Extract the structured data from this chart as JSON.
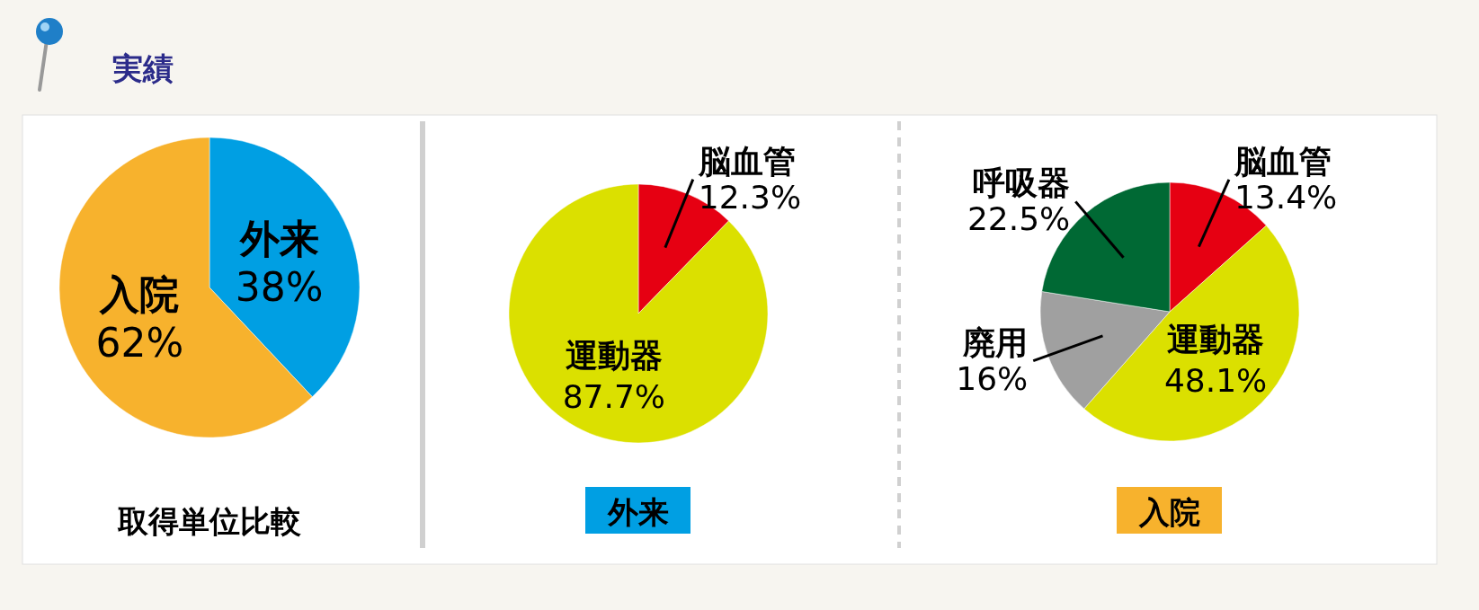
{
  "chart_data": [
    {
      "type": "pie",
      "title": "取得単位比較",
      "annotations": [
        "実績"
      ],
      "categories": [
        "外来",
        "入院"
      ],
      "values": [
        38,
        62
      ],
      "colors": [
        "#009fe3",
        "#f7b22d"
      ],
      "value_labels": [
        "38%",
        "62%"
      ]
    },
    {
      "type": "pie",
      "title": "外来",
      "categories": [
        "脳血管",
        "運動器"
      ],
      "values": [
        12.3,
        87.7
      ],
      "colors": [
        "#e60012",
        "#dbe000"
      ],
      "value_labels": [
        "12.3%",
        "87.7%"
      ]
    },
    {
      "type": "pie",
      "title": "入院",
      "categories": [
        "脳血管",
        "運動器",
        "廃用",
        "呼吸器"
      ],
      "values": [
        13.4,
        48.1,
        16,
        22.5
      ],
      "colors": [
        "#e60012",
        "#dbe000",
        "#a0a0a0",
        "#006934"
      ],
      "value_labels": [
        "13.4%",
        "48.1%",
        "16%",
        "22.5%"
      ]
    }
  ]
}
